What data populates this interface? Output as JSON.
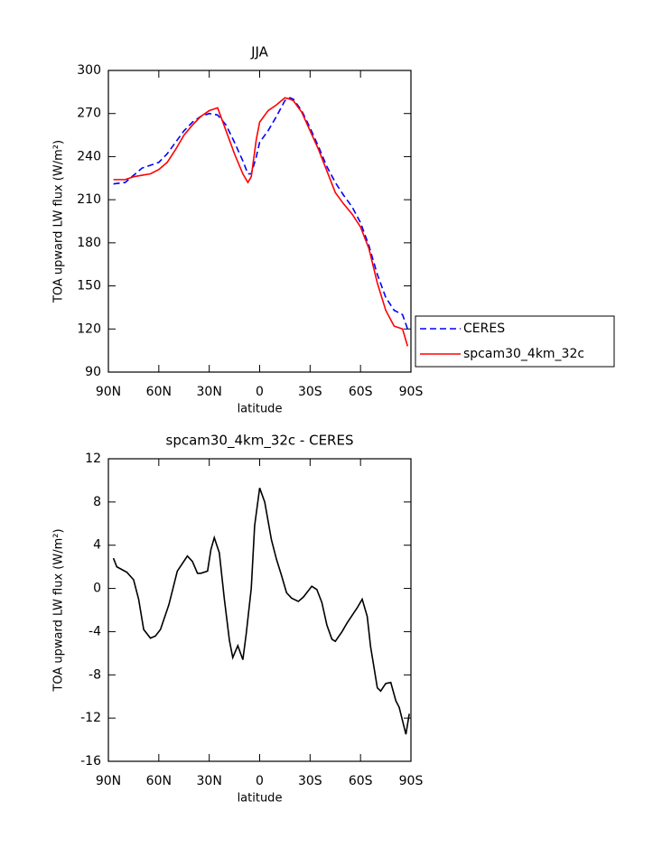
{
  "chart_data": [
    {
      "type": "line",
      "title": "JJA",
      "xlabel": "latitude",
      "ylabel": "TOA upward LW flux (W/m²)",
      "x": [
        87,
        80,
        75,
        70,
        65,
        60,
        55,
        50,
        45,
        40,
        35,
        30,
        25,
        20,
        15,
        10,
        7,
        5,
        2,
        0,
        -5,
        -10,
        -15,
        -18,
        -20,
        -25,
        -30,
        -35,
        -40,
        -45,
        -50,
        -55,
        -60,
        -65,
        -70,
        -75,
        -80,
        -85,
        -88
      ],
      "series": [
        {
          "name": "CERES",
          "color": "#0000ff",
          "linestyle": "dashed",
          "values": [
            221,
            222,
            227,
            232,
            234,
            236,
            242,
            250,
            258,
            264,
            268,
            270,
            269,
            262,
            250,
            237,
            228,
            228,
            240,
            250,
            258,
            268,
            279,
            281,
            280,
            272,
            260,
            247,
            233,
            222,
            213,
            205,
            194,
            178,
            158,
            142,
            133,
            130,
            120
          ]
        },
        {
          "name": "spcam30_4km_32c",
          "color": "#ff0000",
          "linestyle": "solid",
          "values": [
            224,
            224,
            226,
            227,
            228,
            231,
            236,
            245,
            255,
            262,
            268,
            272,
            274,
            258,
            242,
            228,
            222,
            226,
            252,
            264,
            272,
            276,
            281,
            280,
            279,
            271,
            258,
            245,
            230,
            215,
            207,
            200,
            191,
            176,
            152,
            133,
            122,
            120,
            108
          ]
        }
      ],
      "xlim": [
        90,
        -90
      ],
      "xticks": [
        {
          "value": 90,
          "label": "90N"
        },
        {
          "value": 60,
          "label": "60N"
        },
        {
          "value": 30,
          "label": "30N"
        },
        0,
        {
          "value": -30,
          "label": "30S"
        },
        {
          "value": -60,
          "label": "60S"
        },
        {
          "value": -90,
          "label": "90S"
        }
      ],
      "ylim": [
        90,
        300
      ],
      "yticks": [
        90,
        120,
        150,
        180,
        210,
        240,
        270,
        300
      ],
      "legend": "outside right"
    },
    {
      "type": "line",
      "title": "spcam30_4km_32c - CERES",
      "xlabel": "latitude",
      "ylabel": "TOA upward LW flux (W/m²)",
      "x": [
        87,
        85,
        79,
        75,
        72,
        69,
        65,
        62,
        59,
        54,
        49,
        43,
        40,
        37,
        35,
        31,
        29,
        27,
        24,
        21,
        18,
        16,
        13,
        10,
        8,
        5,
        3,
        0,
        -3,
        -7,
        -10,
        -13,
        -16,
        -19,
        -23,
        -26,
        -29,
        -31,
        -34,
        -37,
        -40,
        -43,
        -45,
        -49,
        -52,
        -58,
        -61,
        -64,
        -66,
        -70,
        -72,
        -75,
        -78,
        -81,
        -83,
        -87,
        -89
      ],
      "values": [
        2.8,
        2,
        1.5,
        0.8,
        -1,
        -3.8,
        -4.6,
        -4.4,
        -3.8,
        -1.5,
        1.6,
        3,
        2.5,
        1.4,
        1.4,
        1.6,
        3.6,
        4.7,
        3.3,
        -1,
        -4.8,
        -6.4,
        -5.3,
        -6.6,
        -4.2,
        0,
        5.8,
        9.3,
        8,
        4.5,
        2.7,
        1.2,
        -0.4,
        -0.9,
        -1.2,
        -0.8,
        -0.2,
        0.2,
        -0.1,
        -1.3,
        -3.4,
        -4.7,
        -4.9,
        -4,
        -3.2,
        -1.8,
        -1,
        -2.6,
        -5.4,
        -9.2,
        -9.5,
        -8.8,
        -8.7,
        -10.4,
        -11,
        -13.5,
        -11.6
      ],
      "color": "#000000",
      "xlim": [
        90,
        -90
      ],
      "xticks": [
        {
          "value": 90,
          "label": "90N"
        },
        {
          "value": 60,
          "label": "60N"
        },
        {
          "value": 30,
          "label": "30N"
        },
        0,
        {
          "value": -30,
          "label": "30S"
        },
        {
          "value": -60,
          "label": "60S"
        },
        {
          "value": -90,
          "label": "90S"
        }
      ],
      "ylim": [
        -16,
        12
      ],
      "yticks": [
        -16,
        -12,
        -8,
        -4,
        0,
        4,
        8,
        12
      ]
    }
  ]
}
